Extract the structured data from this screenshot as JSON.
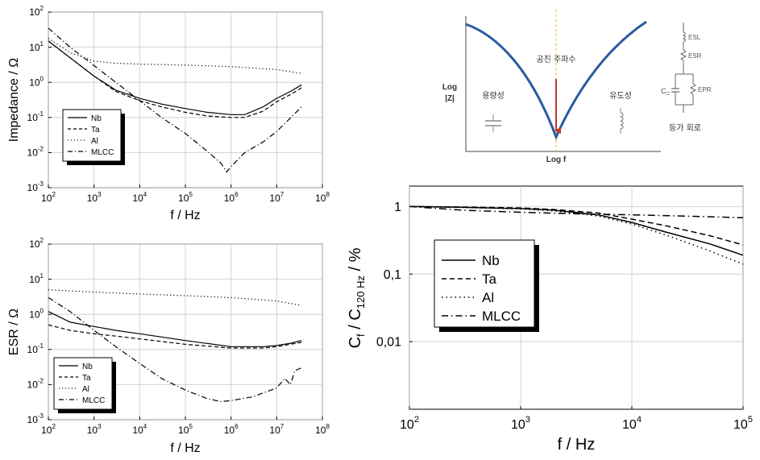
{
  "chart_data": [
    {
      "id": "impedance",
      "type": "line",
      "xlabel": "f / Hz",
      "ylabel": "Impedance  / Ω",
      "xlim": [
        100,
        100000000
      ],
      "ylim": [
        0.001,
        100
      ],
      "xscale": "log",
      "yscale": "log",
      "xticks": [
        {
          "v": 100,
          "b": "10",
          "e": "2"
        },
        {
          "v": 1000,
          "b": "10",
          "e": "3"
        },
        {
          "v": 10000,
          "b": "10",
          "e": "4"
        },
        {
          "v": 100000,
          "b": "10",
          "e": "5"
        },
        {
          "v": 1000000,
          "b": "10",
          "e": "6"
        },
        {
          "v": 10000000,
          "b": "10",
          "e": "7"
        },
        {
          "v": 100000000,
          "b": "10",
          "e": "8"
        }
      ],
      "yticks": [
        {
          "v": 0.001,
          "b": "10",
          "e": "-3"
        },
        {
          "v": 0.01,
          "b": "10",
          "e": "-2"
        },
        {
          "v": 0.1,
          "b": "10",
          "e": "-1"
        },
        {
          "v": 1,
          "b": "10",
          "e": "0"
        },
        {
          "v": 10,
          "b": "10",
          "e": "1"
        },
        {
          "v": 100,
          "b": "10",
          "e": "2"
        }
      ],
      "grid": true,
      "legend": "bottom-left",
      "series": [
        {
          "name": "Nb",
          "style": "solid",
          "x": [
            100,
            300,
            1000,
            3000,
            10000,
            30000,
            100000,
            300000,
            1000000,
            2000000,
            5000000,
            10000000,
            20000000,
            35000000
          ],
          "y": [
            15,
            5,
            1.5,
            0.6,
            0.35,
            0.24,
            0.18,
            0.14,
            0.12,
            0.12,
            0.2,
            0.35,
            0.55,
            0.85
          ]
        },
        {
          "name": "Ta",
          "style": "dashed",
          "x": [
            100,
            300,
            1000,
            3000,
            10000,
            30000,
            100000,
            300000,
            1000000,
            2000000,
            5000000,
            10000000,
            20000000,
            35000000
          ],
          "y": [
            15,
            5,
            1.5,
            0.55,
            0.3,
            0.2,
            0.14,
            0.11,
            0.1,
            0.1,
            0.15,
            0.28,
            0.45,
            0.7
          ]
        },
        {
          "name": "Al",
          "style": "dotted",
          "x": [
            100,
            300,
            1000,
            3000,
            10000,
            100000,
            1000000,
            10000000,
            35000000
          ],
          "y": [
            18,
            7,
            4,
            3.5,
            3.3,
            3.1,
            2.8,
            2.3,
            1.8
          ]
        },
        {
          "name": "MLCC",
          "style": "dashdot",
          "x": [
            100,
            300,
            1000,
            3000,
            10000,
            30000,
            100000,
            300000,
            600000,
            800000,
            1000000,
            2000000,
            5000000,
            10000000,
            35000000
          ],
          "y": [
            35,
            10,
            3,
            1.0,
            0.3,
            0.1,
            0.035,
            0.011,
            0.005,
            0.0028,
            0.004,
            0.01,
            0.02,
            0.04,
            0.2
          ]
        }
      ]
    },
    {
      "id": "esr",
      "type": "line",
      "xlabel": "f / Hz",
      "ylabel": "ESR  / Ω",
      "xlim": [
        100,
        100000000
      ],
      "ylim": [
        0.001,
        100
      ],
      "xscale": "log",
      "yscale": "log",
      "xticks": [
        {
          "v": 100,
          "b": "10",
          "e": "2"
        },
        {
          "v": 1000,
          "b": "10",
          "e": "3"
        },
        {
          "v": 10000,
          "b": "10",
          "e": "4"
        },
        {
          "v": 100000,
          "b": "10",
          "e": "5"
        },
        {
          "v": 1000000,
          "b": "10",
          "e": "6"
        },
        {
          "v": 10000000,
          "b": "10",
          "e": "7"
        },
        {
          "v": 100000000,
          "b": "10",
          "e": "8"
        }
      ],
      "yticks": [
        {
          "v": 0.001,
          "b": "10",
          "e": "-3"
        },
        {
          "v": 0.01,
          "b": "10",
          "e": "-2"
        },
        {
          "v": 0.1,
          "b": "10",
          "e": "-1"
        },
        {
          "v": 1,
          "b": "10",
          "e": "0"
        },
        {
          "v": 10,
          "b": "10",
          "e": "1"
        },
        {
          "v": 100,
          "b": "10",
          "e": "2"
        }
      ],
      "grid": true,
      "legend": "bottom-left",
      "series": [
        {
          "name": "Nb",
          "style": "solid",
          "x": [
            100,
            300,
            1000,
            3000,
            10000,
            100000,
            1000000,
            5000000,
            10000000,
            20000000,
            35000000
          ],
          "y": [
            1.2,
            0.6,
            0.45,
            0.35,
            0.28,
            0.18,
            0.12,
            0.12,
            0.13,
            0.15,
            0.18
          ]
        },
        {
          "name": "Ta",
          "style": "dashed",
          "x": [
            100,
            300,
            1000,
            3000,
            10000,
            100000,
            1000000,
            5000000,
            10000000,
            20000000,
            35000000
          ],
          "y": [
            0.5,
            0.35,
            0.28,
            0.24,
            0.2,
            0.14,
            0.11,
            0.11,
            0.12,
            0.14,
            0.16
          ]
        },
        {
          "name": "Al",
          "style": "dotted",
          "x": [
            100,
            1000,
            10000,
            100000,
            1000000,
            10000000,
            35000000
          ],
          "y": [
            5,
            4.3,
            3.8,
            3.4,
            3,
            2.4,
            1.8
          ]
        },
        {
          "name": "MLCC",
          "style": "dashdot",
          "x": [
            100,
            300,
            1000,
            3000,
            10000,
            30000,
            100000,
            300000,
            600000,
            1000000,
            3000000,
            10000000,
            15000000,
            20000000,
            25000000,
            35000000
          ],
          "y": [
            3,
            1.2,
            0.35,
            0.12,
            0.04,
            0.015,
            0.007,
            0.004,
            0.0033,
            0.0035,
            0.0045,
            0.008,
            0.015,
            0.01,
            0.025,
            0.03
          ]
        }
      ]
    },
    {
      "id": "capacitance",
      "type": "line",
      "xlabel": "f / Hz",
      "ylabel_main": "C",
      "ylabel_sub_f": "f",
      "ylabel_mid": " / C",
      "ylabel_sub_120": "120 Hz",
      "ylabel_tail": "  / %",
      "xlim": [
        100,
        100000
      ],
      "ylim": [
        0.001,
        2
      ],
      "xscale": "log",
      "yscale": "log",
      "xticks": [
        {
          "v": 100,
          "b": "10",
          "e": "2"
        },
        {
          "v": 1000,
          "b": "10",
          "e": "3"
        },
        {
          "v": 10000,
          "b": "10",
          "e": "4"
        },
        {
          "v": 100000,
          "b": "10",
          "e": "5"
        }
      ],
      "yticks": [
        {
          "v": 1,
          "label": "1"
        },
        {
          "v": 0.1,
          "label": "0,1"
        },
        {
          "v": 0.01,
          "label": "0,01"
        }
      ],
      "grid": true,
      "legend": "center-left",
      "series": [
        {
          "name": "Nb",
          "style": "solid",
          "x": [
            100,
            300,
            1000,
            2000,
            5000,
            10000,
            20000,
            50000,
            100000
          ],
          "y": [
            1.0,
            0.97,
            0.93,
            0.88,
            0.75,
            0.58,
            0.42,
            0.28,
            0.19
          ]
        },
        {
          "name": "Ta",
          "style": "dashed",
          "x": [
            100,
            300,
            1000,
            2000,
            5000,
            10000,
            20000,
            50000,
            100000
          ],
          "y": [
            1.0,
            0.98,
            0.95,
            0.9,
            0.8,
            0.65,
            0.52,
            0.37,
            0.27
          ]
        },
        {
          "name": "Al",
          "style": "dotted",
          "x": [
            100,
            300,
            1000,
            2000,
            5000,
            10000,
            20000,
            50000,
            100000
          ],
          "y": [
            1.0,
            0.97,
            0.92,
            0.86,
            0.72,
            0.55,
            0.38,
            0.22,
            0.14
          ]
        },
        {
          "name": "MLCC",
          "style": "dashdot",
          "x": [
            100,
            300,
            1000,
            3000,
            10000,
            30000,
            100000
          ],
          "y": [
            1.0,
            0.88,
            0.82,
            0.78,
            0.75,
            0.72,
            0.68
          ]
        }
      ]
    }
  ],
  "schematic": {
    "y_axis_label_line1": "Log",
    "y_axis_label_line2": "|Z|",
    "x_axis_label": "Log f",
    "resonance_label": "공진 주파수",
    "capacitive_label": "용량성",
    "inductive_label": "유도성",
    "esl_label": "ESL",
    "esr_label": "ESR",
    "epr_label": "EPR",
    "c_label": "C",
    "equivalent_circuit_label": "등가 회로",
    "curve_color": "#2c5aa0",
    "resonance_line_color": "#f2c14e",
    "arrow_color": "#c0392b",
    "resonance_text_color": "#8b1a1a"
  }
}
